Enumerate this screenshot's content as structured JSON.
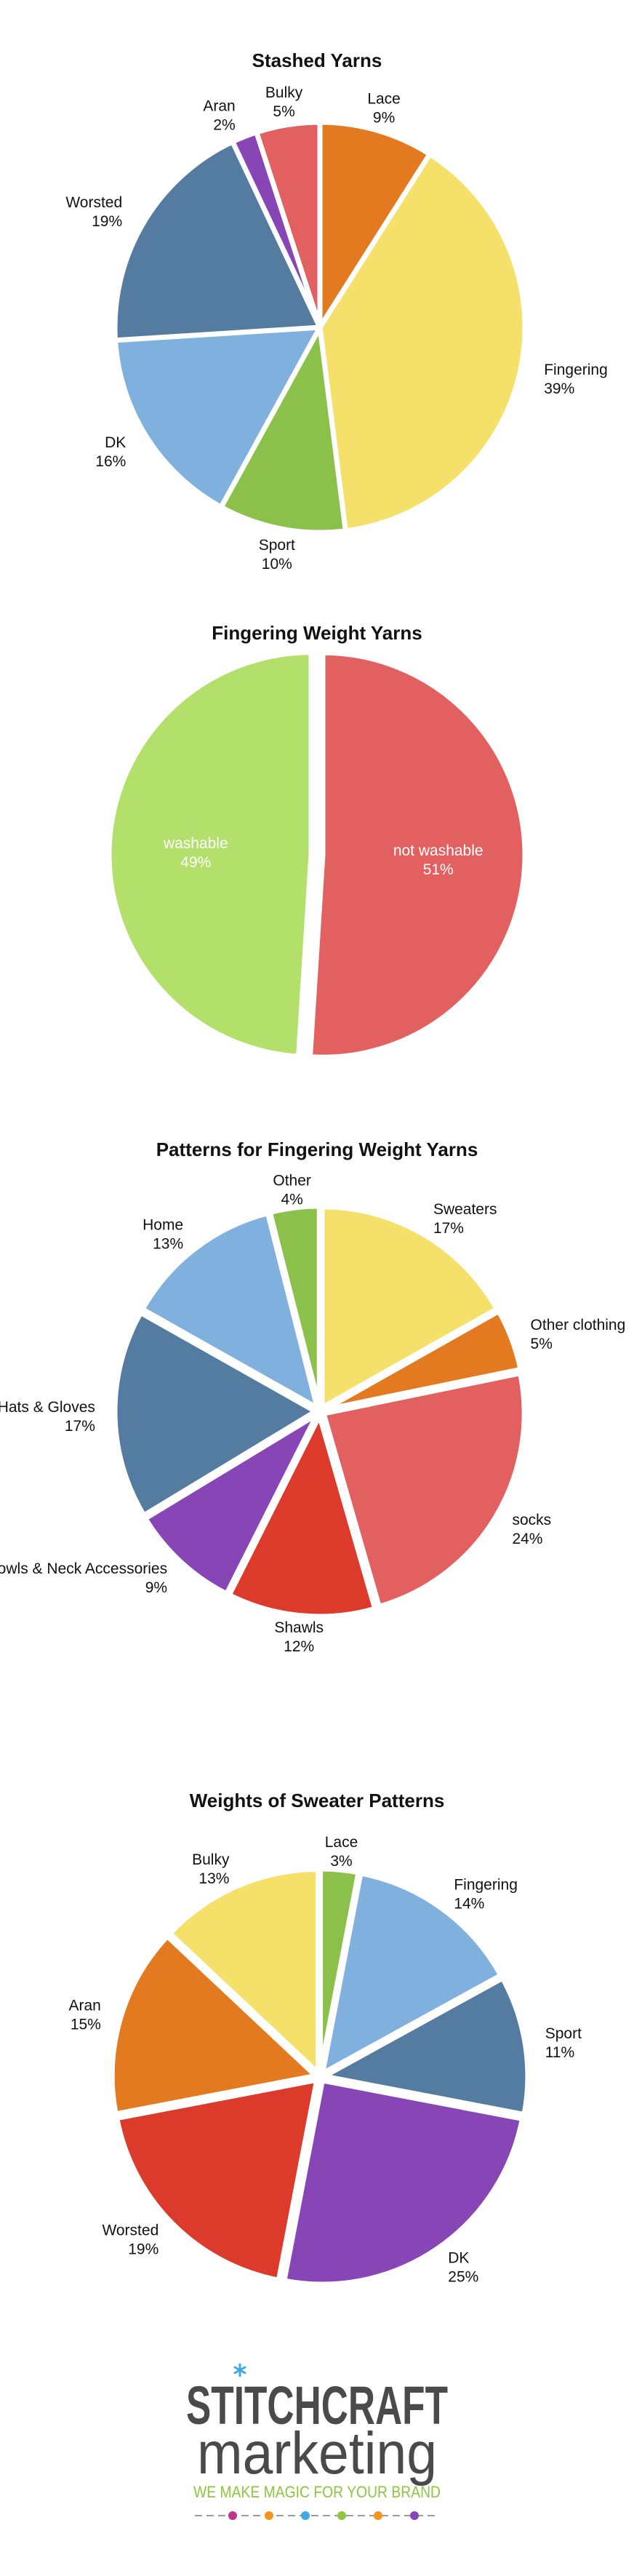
{
  "chart_data": [
    {
      "type": "pie",
      "title": "Stashed Yarns",
      "slices": [
        {
          "label": "Lace",
          "value": 9,
          "pct_label": "9%",
          "color": "#E37A20"
        },
        {
          "label": "Fingering",
          "value": 39,
          "pct_label": "39%",
          "color": "#F5E06A"
        },
        {
          "label": "Sport",
          "value": 10,
          "pct_label": "10%",
          "color": "#8BC04A"
        },
        {
          "label": "DK",
          "value": 16,
          "pct_label": "16%",
          "color": "#7FB0DE"
        },
        {
          "label": "Worsted",
          "value": 19,
          "pct_label": "19%",
          "color": "#547BA0"
        },
        {
          "label": "Aran",
          "value": 2,
          "pct_label": "2%",
          "color": "#8845B5"
        },
        {
          "label": "Bulky",
          "value": 5,
          "pct_label": "5%",
          "color": "#E26060"
        }
      ]
    },
    {
      "type": "pie",
      "title": "Fingering Weight Yarns",
      "slices": [
        {
          "label": "not washable",
          "value": 51,
          "pct_label": "51%",
          "color": "#E26060"
        },
        {
          "label": "washable",
          "value": 49,
          "pct_label": "49%",
          "color": "#B3E06A"
        }
      ]
    },
    {
      "type": "pie",
      "title": "Patterns for Fingering Weight Yarns",
      "slices": [
        {
          "label": "Sweaters",
          "value": 17,
          "pct_label": "17%",
          "color": "#F5E06A"
        },
        {
          "label": "Other clothing",
          "value": 5,
          "pct_label": "5%",
          "color": "#E37A20"
        },
        {
          "label": "socks",
          "value": 24,
          "pct_label": "24%",
          "color": "#E26060"
        },
        {
          "label": "Shawls",
          "value": 12,
          "pct_label": "12%",
          "color": "#DC3A2A"
        },
        {
          "label": "Cowls & Neck Accessories",
          "value": 9,
          "pct_label": "9%",
          "color": "#8845B5"
        },
        {
          "label": "Hats & Gloves",
          "value": 17,
          "pct_label": "17%",
          "color": "#547BA0"
        },
        {
          "label": "Home",
          "value": 13,
          "pct_label": "13%",
          "color": "#7FB0DE"
        },
        {
          "label": "Other",
          "value": 4,
          "pct_label": "4%",
          "color": "#8BC04A"
        }
      ]
    },
    {
      "type": "pie",
      "title": "Weights of Sweater Patterns",
      "slices": [
        {
          "label": "Lace",
          "value": 3,
          "pct_label": "3%",
          "color": "#8BC04A"
        },
        {
          "label": "Fingering",
          "value": 14,
          "pct_label": "14%",
          "color": "#7FB0DE"
        },
        {
          "label": "Sport",
          "value": 11,
          "pct_label": "11%",
          "color": "#547BA0"
        },
        {
          "label": "DK",
          "value": 25,
          "pct_label": "25%",
          "color": "#8845B5"
        },
        {
          "label": "Worsted",
          "value": 19,
          "pct_label": "19%",
          "color": "#DC3A2A"
        },
        {
          "label": "Aran",
          "value": 15,
          "pct_label": "15%",
          "color": "#E37A20"
        },
        {
          "label": "Bulky",
          "value": 13,
          "pct_label": "13%",
          "color": "#F5E06A"
        }
      ]
    }
  ],
  "logo": {
    "line1": "STITCHCRAFT",
    "line2": "marketing",
    "tagline": "WE MAKE MAGIC FOR YOUR BRAND",
    "colors": {
      "dark": "#4A4A4A",
      "accent": "#8DC63F",
      "magenta": "#C2338E",
      "blue": "#3FA9E0",
      "orange": "#F7941D",
      "purple": "#8845B5"
    }
  }
}
